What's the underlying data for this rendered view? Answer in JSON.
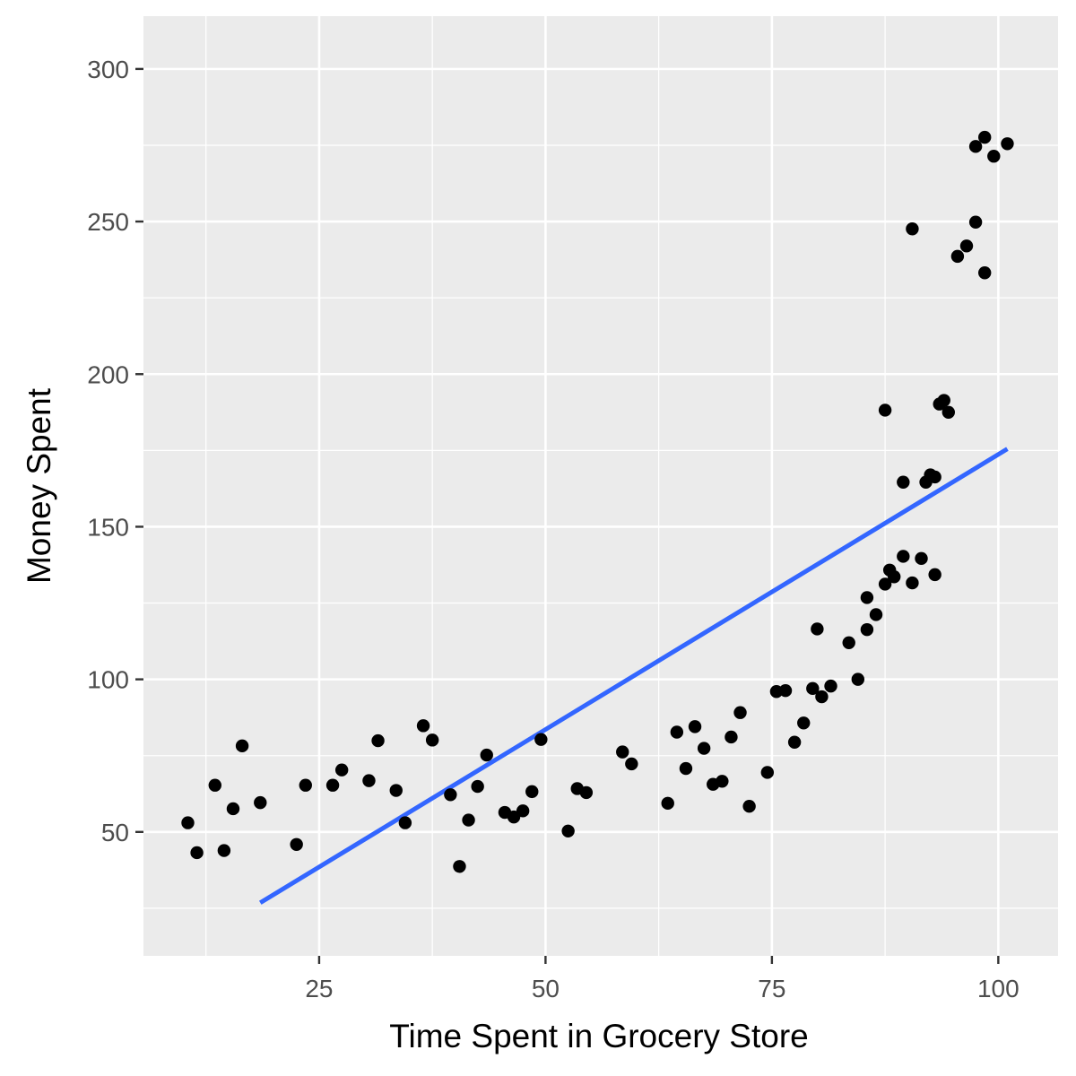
{
  "chart_data": {
    "type": "scatter",
    "title": "",
    "xlabel": "Time Spent in Grocery Store",
    "ylabel": "Money Spent",
    "xlim": [
      5.6,
      106.6
    ],
    "ylim": [
      9.4,
      317.3
    ],
    "x_ticks": [
      25,
      50,
      75,
      100
    ],
    "x_tick_labels": [
      "25",
      "50",
      "75",
      "100"
    ],
    "y_ticks": [
      50,
      100,
      150,
      200,
      250,
      300
    ],
    "y_tick_labels": [
      "50",
      "100",
      "150",
      "200",
      "250",
      "300"
    ],
    "grid": true,
    "legend": "none",
    "colors": {
      "panel_background": "#ebebeb",
      "grid_major": "#ffffff",
      "grid_minor": "#ffffff",
      "points": "#000000",
      "fit_line": "#3366ff"
    },
    "series": [
      {
        "type": "scatter",
        "points": [
          [
            10.5,
            53.0
          ],
          [
            11.5,
            43.2
          ],
          [
            13.5,
            65.3
          ],
          [
            14.5,
            43.9
          ],
          [
            15.5,
            57.6
          ],
          [
            16.5,
            78.2
          ],
          [
            18.5,
            59.6
          ],
          [
            22.5,
            45.9
          ],
          [
            23.5,
            65.3
          ],
          [
            26.5,
            65.3
          ],
          [
            27.5,
            70.3
          ],
          [
            30.5,
            66.8
          ],
          [
            31.5,
            79.9
          ],
          [
            33.5,
            63.6
          ],
          [
            34.5,
            53.0
          ],
          [
            36.5,
            84.8
          ],
          [
            37.5,
            80.1
          ],
          [
            39.5,
            62.2
          ],
          [
            40.5,
            38.7
          ],
          [
            41.5,
            53.9
          ],
          [
            42.5,
            64.9
          ],
          [
            43.5,
            75.2
          ],
          [
            45.5,
            56.4
          ],
          [
            46.5,
            54.9
          ],
          [
            47.5,
            56.9
          ],
          [
            48.5,
            63.2
          ],
          [
            49.5,
            80.3
          ],
          [
            52.5,
            50.3
          ],
          [
            53.5,
            64.2
          ],
          [
            54.5,
            62.9
          ],
          [
            58.5,
            76.2
          ],
          [
            59.5,
            72.3
          ],
          [
            63.5,
            59.4
          ],
          [
            64.5,
            82.7
          ],
          [
            65.5,
            70.8
          ],
          [
            66.5,
            84.5
          ],
          [
            67.5,
            77.4
          ],
          [
            68.5,
            65.6
          ],
          [
            69.5,
            66.6
          ],
          [
            70.5,
            81.1
          ],
          [
            71.5,
            89.1
          ],
          [
            72.5,
            58.4
          ],
          [
            74.5,
            69.5
          ],
          [
            75.5,
            96.0
          ],
          [
            76.5,
            96.3
          ],
          [
            77.5,
            79.4
          ],
          [
            78.5,
            85.7
          ],
          [
            79.5,
            97.0
          ],
          [
            80.0,
            116.5
          ],
          [
            80.5,
            94.3
          ],
          [
            81.5,
            97.8
          ],
          [
            83.5,
            112.0
          ],
          [
            84.5,
            100.0
          ],
          [
            85.5,
            126.8
          ],
          [
            85.5,
            116.3
          ],
          [
            86.5,
            121.2
          ],
          [
            87.5,
            131.2
          ],
          [
            87.5,
            188.2
          ],
          [
            88.0,
            135.8
          ],
          [
            88.5,
            133.6
          ],
          [
            89.5,
            140.3
          ],
          [
            89.5,
            164.6
          ],
          [
            90.5,
            131.6
          ],
          [
            90.5,
            247.6
          ],
          [
            91.5,
            139.6
          ],
          [
            92.0,
            164.6
          ],
          [
            92.5,
            167.0
          ],
          [
            93.0,
            134.3
          ],
          [
            93.0,
            166.3
          ],
          [
            93.5,
            190.2
          ],
          [
            94.0,
            191.4
          ],
          [
            94.5,
            187.5
          ],
          [
            95.5,
            238.6
          ],
          [
            96.5,
            242.0
          ],
          [
            97.5,
            274.6
          ],
          [
            97.5,
            249.8
          ],
          [
            98.5,
            277.6
          ],
          [
            98.5,
            233.2
          ],
          [
            99.5,
            271.4
          ],
          [
            101.0,
            275.5
          ]
        ]
      },
      {
        "type": "line",
        "method": "lm",
        "points": [
          [
            18.5,
            26.8
          ],
          [
            101.0,
            175.5
          ]
        ]
      }
    ]
  }
}
